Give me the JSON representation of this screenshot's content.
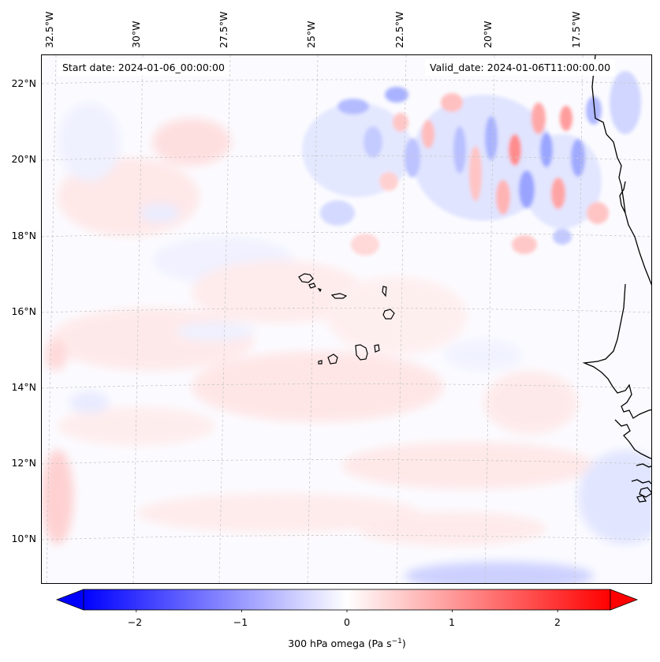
{
  "map": {
    "start_label": "Start date: 2024-01-06_00:00:00",
    "valid_label": "Valid_date: 2024-01-06T11:00:00.00",
    "region": "Eastern tropical North Atlantic / Cape Verde / West African coast",
    "colormap": "bwr",
    "colors": {
      "negative": "#0000ff",
      "zero": "#ffffff",
      "positive": "#ff0000",
      "coastline": "#000000",
      "gridline": "#c8c8c8"
    }
  },
  "lon_labels": [
    "32.5°W",
    "30°W",
    "27.5°W",
    "25°W",
    "22.5°W",
    "20°W",
    "17.5°W"
  ],
  "lat_labels": [
    "22°N",
    "20°N",
    "18°N",
    "16°N",
    "14°N",
    "12°N",
    "10°N"
  ],
  "colorbar": {
    "label": "300 hPa omega (Pa s",
    "label_sup": "−1",
    "label_close": ")",
    "range": [
      -2.5,
      2.5
    ],
    "ticks": [
      "−2",
      "−1",
      "0",
      "1",
      "2"
    ],
    "tick_values": [
      -2,
      -1,
      0,
      1,
      2
    ],
    "extend": "both"
  }
}
